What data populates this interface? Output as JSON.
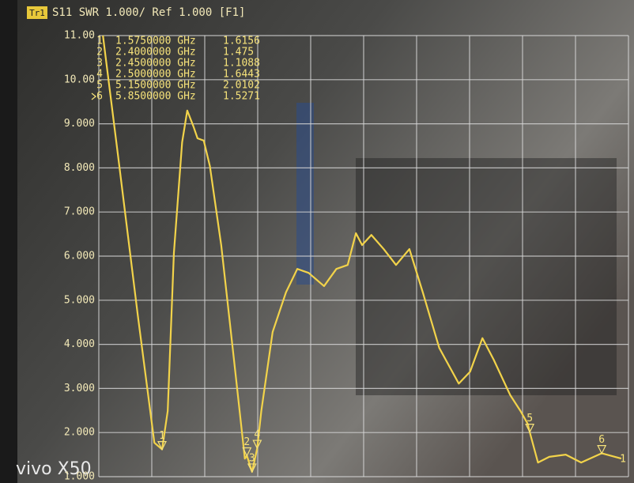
{
  "chart_data": {
    "type": "line",
    "badge": "Tr1",
    "title": "S11 SWR 1.000/ Ref 1.000 [F1]",
    "watermark": "vivo X50",
    "reference_label": "1",
    "color": "#f2d34a",
    "grid": true,
    "xlim": [
      0.96,
      6.11
    ],
    "ylim": [
      1,
      11
    ],
    "yticks": [
      {
        "value": 11,
        "label": "11.00"
      },
      {
        "value": 10,
        "label": "10.00"
      },
      {
        "value": 9,
        "label": "9.000"
      },
      {
        "value": 8,
        "label": "8.000"
      },
      {
        "value": 7,
        "label": "7.000"
      },
      {
        "value": 6,
        "label": "6.000"
      },
      {
        "value": 5,
        "label": "5.000"
      },
      {
        "value": 4,
        "label": "4.000"
      },
      {
        "value": 3,
        "label": "3.000"
      },
      {
        "value": 2,
        "label": "2.000"
      },
      {
        "value": 1,
        "label": "1.000"
      }
    ],
    "x": [
      1.0,
      1.15,
      1.34,
      1.5,
      1.575,
      1.63,
      1.69,
      1.77,
      1.82,
      1.88,
      1.92,
      1.98,
      2.04,
      2.15,
      2.27,
      2.38,
      2.4,
      2.45,
      2.5,
      2.54,
      2.65,
      2.78,
      2.89,
      3.0,
      3.15,
      3.27,
      3.38,
      3.46,
      3.52,
      3.61,
      3.73,
      3.85,
      3.98,
      4.11,
      4.27,
      4.46,
      4.57,
      4.69,
      4.8,
      4.96,
      5.06,
      5.13,
      5.15,
      5.23,
      5.34,
      5.5,
      5.65,
      5.85,
      6.04
    ],
    "values": [
      11.0,
      8.22,
      4.64,
      1.77,
      1.62,
      2.49,
      6.07,
      8.58,
      9.3,
      8.94,
      8.67,
      8.62,
      8.04,
      6.25,
      3.74,
      1.41,
      1.475,
      1.11,
      1.64,
      2.49,
      4.28,
      5.18,
      5.71,
      5.62,
      5.32,
      5.71,
      5.8,
      6.52,
      6.25,
      6.48,
      6.16,
      5.8,
      6.16,
      5.18,
      3.92,
      3.11,
      3.38,
      4.14,
      3.65,
      2.85,
      2.49,
      2.2,
      2.01,
      1.32,
      1.45,
      1.5,
      1.32,
      1.53,
      1.41
    ],
    "active_marker": 5,
    "markers": [
      {
        "id": "1",
        "freq": {
          "value": 1.575,
          "label": "1.5750000 GHz"
        },
        "value": 1.6156
      },
      {
        "id": "2",
        "freq": {
          "value": 2.4,
          "label": "2.4000000 GHz"
        },
        "value": 1.475
      },
      {
        "id": "3",
        "freq": {
          "value": 2.45,
          "label": "2.4500000 GHz"
        },
        "value": 1.1088
      },
      {
        "id": "4",
        "freq": {
          "value": 2.5,
          "label": "2.5000000 GHz"
        },
        "value": 1.6443
      },
      {
        "id": "5",
        "freq": {
          "value": 5.15,
          "label": "5.1500000 GHz"
        },
        "value": 2.0102
      },
      {
        "id": "6",
        "freq": {
          "value": 5.85,
          "label": "5.8500000 GHz"
        },
        "value": 1.5271
      }
    ]
  }
}
